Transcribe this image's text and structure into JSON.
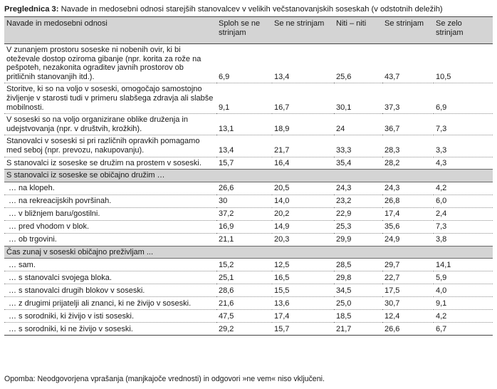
{
  "caption": {
    "label": "Preglednica 3:",
    "text": "Navade in medosebni odnosi starejših stanovalcev v velikih večstanovanjskih soseskah (v odstotnih deležih)"
  },
  "headers": [
    "Navade in medosebni odnosi",
    "Sploh se ne strinjam",
    "Se ne strinjam",
    "Niti – niti",
    "Se strinjam",
    "Se zelo strinjam"
  ],
  "rows_top": [
    {
      "label": "V zunanjem prostoru soseske ni nobenih ovir, ki bi oteževale dostop oziroma gibanje (npr. korita za rože na pešpoteh, nezakonita ograditev javnih prostorov ob pritličnih stanovanjih itd.).",
      "values": [
        "6,9",
        "13,4",
        "25,6",
        "43,7",
        "10,5"
      ]
    },
    {
      "label": "Storitve, ki so na voljo v soseski, omogočajo samostojno življenje v starosti tudi v primeru slabšega zdravja ali slabše mobilnosti.",
      "values": [
        "9,1",
        "16,7",
        "30,1",
        "37,3",
        "6,9"
      ]
    },
    {
      "label": "V soseski so na voljo organizirane oblike druženja in udejstvovanja (npr. v društvih, krožkih).",
      "values": [
        "13,1",
        "18,9",
        "24",
        "36,7",
        "7,3"
      ]
    },
    {
      "label": "Stanovalci v soseski si pri različnih opravkih pomagamo med seboj (npr. prevozu, nakupovanju).",
      "values": [
        "13,4",
        "21,7",
        "33,3",
        "28,3",
        "3,3"
      ]
    },
    {
      "label": "S stanovalci iz soseske se družim na prostem v soseski.",
      "values": [
        "15,7",
        "16,4",
        "35,4",
        "28,2",
        "4,3"
      ]
    }
  ],
  "section1": {
    "title": "S stanovalci iz soseske se običajno družim …",
    "rows": [
      {
        "label": "… na klopeh.",
        "values": [
          "26,6",
          "20,5",
          "24,3",
          "24,3",
          "4,2"
        ]
      },
      {
        "label": "… na rekreacijskih površinah.",
        "values": [
          "30",
          "14,0",
          "23,2",
          "26,8",
          "6,0"
        ]
      },
      {
        "label": "… v bližnjem baru/gostilni.",
        "values": [
          "37,2",
          "20,2",
          "22,9",
          "17,4",
          "2,4"
        ]
      },
      {
        "label": "… pred vhodom v blok.",
        "values": [
          "16,9",
          "14,9",
          "25,3",
          "35,6",
          "7,3"
        ]
      },
      {
        "label": "… ob trgovini.",
        "values": [
          "21,1",
          "20,3",
          "29,9",
          "24,9",
          "3,8"
        ]
      }
    ]
  },
  "section2": {
    "title": "Čas zunaj v soseski običajno preživljam ...",
    "rows": [
      {
        "label": "… sam.",
        "values": [
          "15,2",
          "12,5",
          "28,5",
          "29,7",
          "14,1"
        ]
      },
      {
        "label": "… s stanovalci svojega bloka.",
        "values": [
          "25,1",
          "16,5",
          "29,8",
          "22,7",
          "5,9"
        ]
      },
      {
        "label": "… s stanovalci drugih blokov v soseski.",
        "values": [
          "28,6",
          "15,5",
          "34,5",
          "17,5",
          "4,0"
        ]
      },
      {
        "label": "… z drugimi prijatelji ali znanci, ki ne živijo v soseski.",
        "values": [
          "21,6",
          "13,6",
          "25,0",
          "30,7",
          "9,1"
        ]
      },
      {
        "label": "… s sorodniki, ki živijo v isti soseski.",
        "values": [
          "47,5",
          "17,4",
          "18,5",
          "12,4",
          "4,2"
        ]
      },
      {
        "label": "… s sorodniki, ki ne živijo v soseski.",
        "values": [
          "29,2",
          "15,7",
          "21,7",
          "26,6",
          "6,7"
        ]
      }
    ]
  },
  "note": "Opomba: Neodgovorjena vprašanja (manjkajoče vrednosti) in odgovori »ne vem« niso vključeni."
}
